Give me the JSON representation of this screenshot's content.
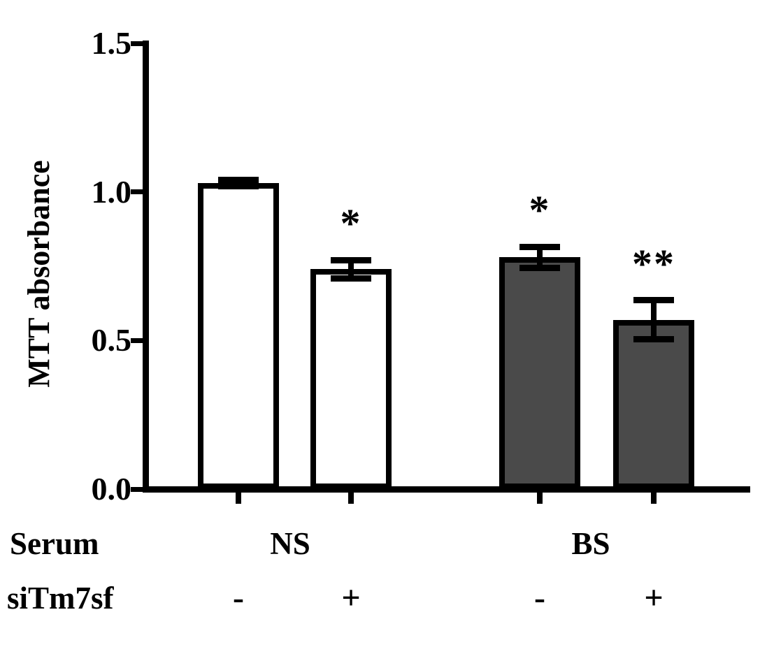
{
  "colors": {
    "axis": "#000000",
    "text": "#000000",
    "bar_fill_white": "#ffffff",
    "bar_fill_dark": "#4a4a4a",
    "background": "#ffffff"
  },
  "chart_data": {
    "type": "bar",
    "title": "",
    "ylabel": "MTT absorbance",
    "xlabel": "",
    "ylim": [
      0,
      1.5
    ],
    "grid": false,
    "legend_position": "none",
    "yticks": [
      {
        "value": 0.0,
        "label": "0.0"
      },
      {
        "value": 0.5,
        "label": "0.5"
      },
      {
        "value": 1.0,
        "label": "1.0"
      },
      {
        "value": 1.5,
        "label": "1.5"
      }
    ],
    "condition_rows": [
      {
        "name": "Serum"
      },
      {
        "name": "siTm7sf"
      }
    ],
    "groups": [
      {
        "label": "NS"
      },
      {
        "label": "BS"
      }
    ],
    "bars": [
      {
        "serum": "NS",
        "siTm7sf": "-",
        "value": 1.03,
        "error": 0.01,
        "fill": "white",
        "significance": ""
      },
      {
        "serum": "NS",
        "siTm7sf": "+",
        "value": 0.74,
        "error": 0.03,
        "fill": "white",
        "significance": "*"
      },
      {
        "serum": "BS",
        "siTm7sf": "-",
        "value": 0.78,
        "error": 0.035,
        "fill": "dark",
        "significance": "*"
      },
      {
        "serum": "BS",
        "siTm7sf": "+",
        "value": 0.57,
        "error": 0.065,
        "fill": "dark",
        "significance": "**"
      }
    ]
  }
}
